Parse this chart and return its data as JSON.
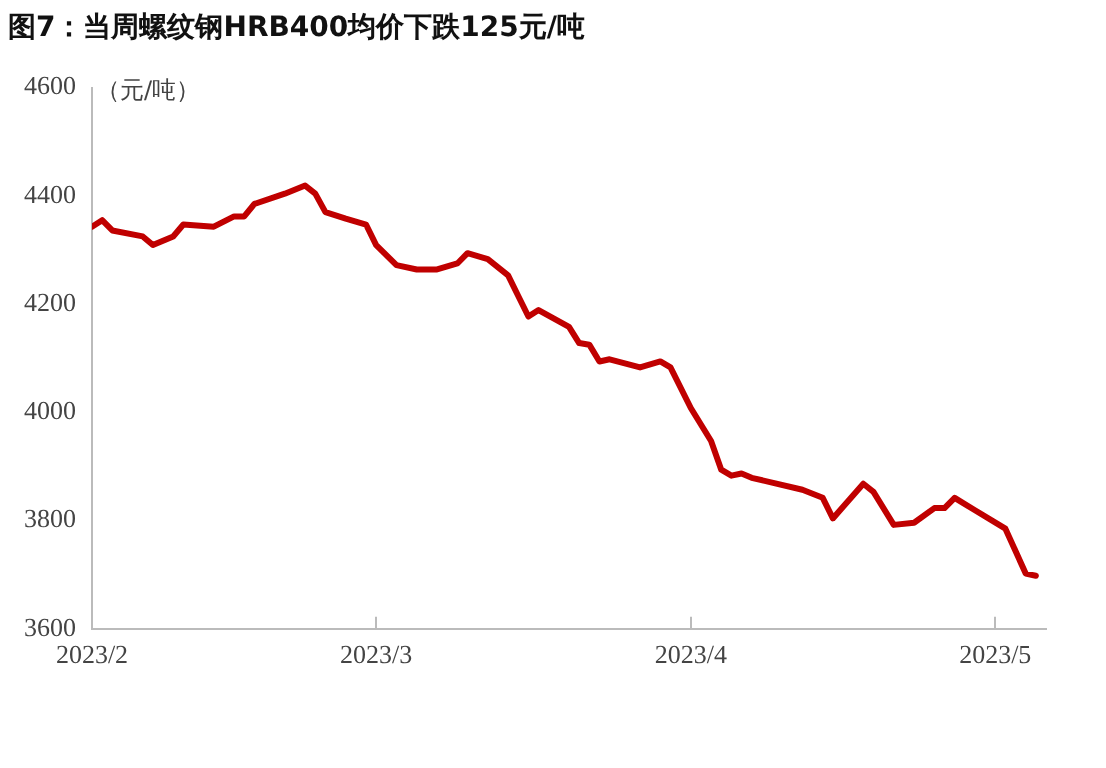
{
  "chart_data": {
    "type": "line",
    "title": "图7：当周螺纹钢HRB400均价下跌125元/吨",
    "ylabel": "（元/吨）",
    "x": [
      "2023-02-01",
      "2023-02-02",
      "2023-02-03",
      "2023-02-06",
      "2023-02-07",
      "2023-02-09",
      "2023-02-10",
      "2023-02-13",
      "2023-02-15",
      "2023-02-16",
      "2023-02-17",
      "2023-02-20",
      "2023-02-22",
      "2023-02-23",
      "2023-02-24",
      "2023-02-26",
      "2023-02-28",
      "2023-03-01",
      "2023-03-03",
      "2023-03-05",
      "2023-03-07",
      "2023-03-09",
      "2023-03-10",
      "2023-03-12",
      "2023-03-14",
      "2023-03-15",
      "2023-03-16",
      "2023-03-17",
      "2023-03-20",
      "2023-03-21",
      "2023-03-22",
      "2023-03-23",
      "2023-03-24",
      "2023-03-27",
      "2023-03-29",
      "2023-03-30",
      "2023-04-01",
      "2023-04-03",
      "2023-04-04",
      "2023-04-05",
      "2023-04-06",
      "2023-04-07",
      "2023-04-12",
      "2023-04-14",
      "2023-04-15",
      "2023-04-18",
      "2023-04-19",
      "2023-04-21",
      "2023-04-23",
      "2023-04-25",
      "2023-04-26",
      "2023-04-27",
      "2023-04-29",
      "2023-05-02",
      "2023-05-04",
      "2023-05-05"
    ],
    "series": [
      {
        "color": "#c00000",
        "values": [
          4343,
          4355,
          4336,
          4325,
          4309,
          4325,
          4347,
          4343,
          4362,
          4362,
          4385,
          4404,
          4419,
          4404,
          4370,
          4358,
          4347,
          4309,
          4272,
          4264,
          4264,
          4275,
          4294,
          4283,
          4253,
          4215,
          4177,
          4189,
          4158,
          4128,
          4125,
          4094,
          4098,
          4083,
          4094,
          4083,
          4008,
          3947,
          3894,
          3883,
          3887,
          3879,
          3857,
          3842,
          3804,
          3868,
          3853,
          3792,
          3796,
          3823,
          3823,
          3842,
          3819,
          3785,
          3702,
          3698
        ]
      }
    ],
    "xlim": [
      "2023-02-01",
      "2023-05-06"
    ],
    "xticks": [
      {
        "value": "2023-02-01",
        "label": "2023/2"
      },
      {
        "value": "2023-03-01",
        "label": "2023/3"
      },
      {
        "value": "2023-04-01",
        "label": "2023/4"
      },
      {
        "value": "2023-05-01",
        "label": "2023/5"
      }
    ],
    "ylim": [
      3600,
      4600
    ],
    "yticks": [
      3600,
      3800,
      4000,
      4200,
      4400,
      4600
    ],
    "grid": false,
    "legend": false,
    "marker": "none",
    "line_style": "solid"
  }
}
